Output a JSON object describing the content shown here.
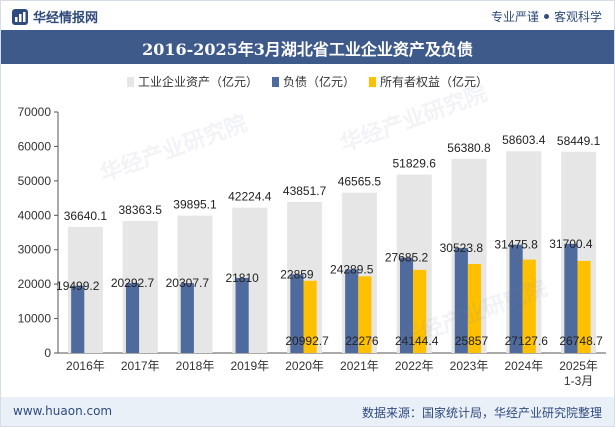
{
  "header": {
    "brand": "华经情报网",
    "tagline_left": "专业严谨",
    "tagline_right": "客观科学"
  },
  "chart_data": {
    "type": "bar",
    "title": "2016-2025年3月湖北省工业企业资产及负债",
    "categories": [
      "2016年",
      "2017年",
      "2018年",
      "2019年",
      "2020年",
      "2021年",
      "2022年",
      "2023年",
      "2024年",
      "2025年\n1-3月"
    ],
    "series": [
      {
        "name": "工业企业资产（亿元）",
        "color": "#e6e6e6",
        "values": [
          36640.1,
          38363.5,
          39895.1,
          42224.4,
          43851.7,
          46565.5,
          51829.6,
          56380.8,
          58603.4,
          58449.1
        ]
      },
      {
        "name": "负债（亿元）",
        "color": "#4f6a9c",
        "values": [
          19499.2,
          20292.7,
          20307.7,
          21810,
          22859,
          24289.5,
          27685.2,
          30523.8,
          31475.8,
          31700.4
        ]
      },
      {
        "name": "所有者权益（亿元）",
        "color": "#ffc000",
        "values": [
          null,
          null,
          null,
          null,
          20992.7,
          22276,
          24144.4,
          25857,
          27127.6,
          26748.7
        ]
      }
    ],
    "value_labels": {
      "assets": [
        "36640.1",
        "38363.5",
        "39895.1",
        "42224.4",
        "43851.7",
        "46565.5",
        "51829.6",
        "56380.8",
        "58603.4",
        "58449.1"
      ],
      "liabilities": [
        "19499.2",
        "20292.7",
        "20307.7",
        "21810",
        "22859",
        "24289.5",
        "27685.2",
        "30523.8",
        "31475.8",
        "31700.4"
      ],
      "equity": [
        "",
        "",
        "",
        "",
        "20992.7",
        "22276",
        "24144.4",
        "25857",
        "27127.6",
        "26748.7"
      ]
    },
    "ylim": [
      0,
      70000
    ],
    "yticks": [
      "0",
      "10000",
      "20000",
      "30000",
      "40000",
      "50000",
      "60000",
      "70000"
    ],
    "grid": false,
    "legend_position": "top"
  },
  "footer": {
    "url": "www.huaon.com",
    "source": "数据来源：国家统计局，华经产业研究院整理"
  },
  "watermark": {
    "text": "华经产业研究院",
    "url": "www.huaon.com"
  }
}
